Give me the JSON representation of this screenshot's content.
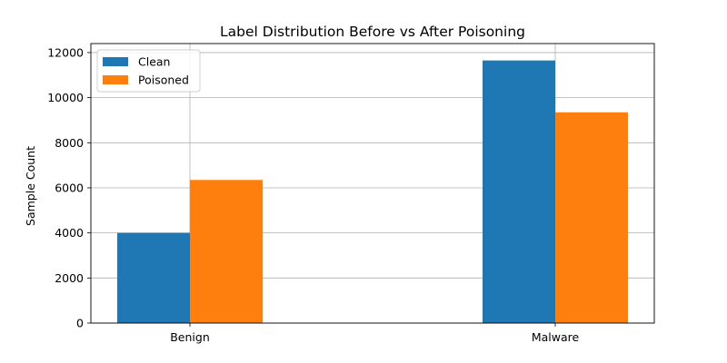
{
  "chart_data": {
    "type": "bar",
    "title": "Label Distribution Before vs After Poisoning",
    "xlabel": "",
    "ylabel": "Sample Count",
    "categories": [
      "Benign",
      "Malware"
    ],
    "series": [
      {
        "name": "Clean",
        "color": "#1f77b4",
        "values": [
          4000,
          11650
        ]
      },
      {
        "name": "Poisoned",
        "color": "#ff7f0e",
        "values": [
          6350,
          9350
        ]
      }
    ],
    "ylim": [
      0,
      12400
    ],
    "yticks": [
      0,
      2000,
      4000,
      6000,
      8000,
      10000,
      12000
    ],
    "grid": true,
    "legend_position": "top-left"
  }
}
